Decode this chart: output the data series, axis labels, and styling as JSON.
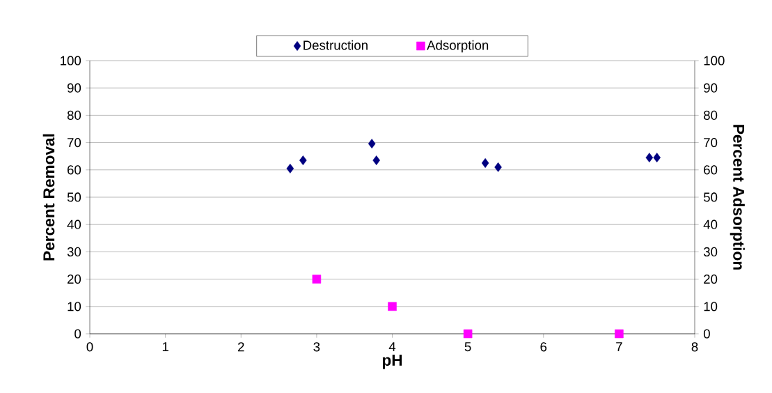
{
  "chart_data": {
    "type": "scatter",
    "xlabel": "pH",
    "ylabel": "Percent Removal",
    "y2label": "Percent Adsorption",
    "xlim": [
      0,
      8
    ],
    "xticks": [
      0,
      1,
      2,
      3,
      4,
      5,
      6,
      7,
      8
    ],
    "ylim": [
      0,
      100
    ],
    "yticks": [
      0,
      10,
      20,
      30,
      40,
      50,
      60,
      70,
      80,
      90,
      100
    ],
    "y2lim": [
      0,
      100
    ],
    "y2ticks": [
      0,
      10,
      20,
      30,
      40,
      50,
      60,
      70,
      80,
      90,
      100
    ],
    "grid": "y",
    "legend": "top",
    "series": [
      {
        "name": "Destruction",
        "color": "#000080",
        "marker": "diamond",
        "x": [
          2.65,
          2.82,
          3.73,
          3.79,
          5.23,
          5.4,
          7.4,
          7.5
        ],
        "values": [
          60.5,
          63.5,
          69.6,
          63.5,
          62.5,
          61,
          64.5,
          64.5
        ]
      },
      {
        "name": "Adsorption",
        "color": "#ff00ff",
        "marker": "square",
        "axis": "y2",
        "x": [
          3,
          4,
          5,
          7
        ],
        "values": [
          20,
          10,
          0,
          0
        ]
      }
    ]
  }
}
